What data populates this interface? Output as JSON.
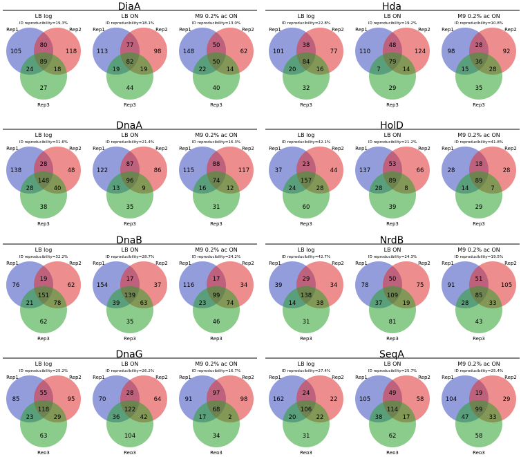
{
  "layout_labels": {
    "rep1": "Rep1",
    "rep2": "Rep2",
    "rep3": "Rep3"
  },
  "colors": {
    "rep1": "#3b4cc0",
    "rep2": "#e03030",
    "rep3": "#2ca02c"
  },
  "panels": [
    {
      "protein": "DiaA",
      "charts": [
        {
          "condition": "LB log",
          "reproducibility": "ID reproducibility=19.3%",
          "only1": 105,
          "only2": 118,
          "only3": 27,
          "r12": 80,
          "r13": 24,
          "r23": 18,
          "all": 89
        },
        {
          "condition": "LB ON",
          "reproducibility": "ID reproducibility=18.1%",
          "only1": 113,
          "only2": 98,
          "only3": 44,
          "r12": 77,
          "r13": 19,
          "r23": 19,
          "all": 82
        },
        {
          "condition": "M9 0.2% ac ON",
          "reproducibility": "ID reproducibility=13.0%",
          "only1": 148,
          "only2": 62,
          "only3": 40,
          "r12": 50,
          "r13": 22,
          "r23": 14,
          "all": 50
        }
      ]
    },
    {
      "protein": "Hda",
      "charts": [
        {
          "condition": "LB log",
          "reproducibility": "ID reproducibility=22.8%",
          "only1": 101,
          "only2": 77,
          "only3": 32,
          "r12": 38,
          "r13": 20,
          "r23": 16,
          "all": 84
        },
        {
          "condition": "LB ON",
          "reproducibility": "ID reproducibility=19.2%",
          "only1": 110,
          "only2": 124,
          "only3": 29,
          "r12": 48,
          "r13": 7,
          "r23": 14,
          "all": 79
        },
        {
          "condition": "M9 0.2% ac ON",
          "reproducibility": "ID reproducibility=10.8%",
          "only1": 98,
          "only2": 92,
          "only3": 35,
          "r12": 28,
          "r13": 15,
          "r23": 28,
          "all": 36
        }
      ]
    },
    {
      "protein": "DnaA",
      "charts": [
        {
          "condition": "LB log",
          "reproducibility": "ID reproducibility=31.6%",
          "only1": 138,
          "only2": 48,
          "only3": 38,
          "r12": 28,
          "r13": 28,
          "r23": 40,
          "all": 148
        },
        {
          "condition": "LB ON",
          "reproducibility": "ID reproducibility=21.4%",
          "only1": 122,
          "only2": 86,
          "only3": 35,
          "r12": 87,
          "r13": 13,
          "r23": 9,
          "all": 96
        },
        {
          "condition": "M9 0.2% ac ON",
          "reproducibility": "ID reproducibility=16.3%",
          "only1": 115,
          "only2": 117,
          "only3": 31,
          "r12": 88,
          "r13": 16,
          "r23": 12,
          "all": 74
        }
      ]
    },
    {
      "protein": "HolD",
      "charts": [
        {
          "condition": "LB log",
          "reproducibility": "ID reproducibility=42.1%",
          "only1": 37,
          "only2": 44,
          "only3": 60,
          "r12": 23,
          "r13": 24,
          "r23": 28,
          "all": 157
        },
        {
          "condition": "LB ON",
          "reproducibility": "ID reproducibility=21.2%",
          "only1": 137,
          "only2": 66,
          "only3": 39,
          "r12": 53,
          "r13": 28,
          "r23": 8,
          "all": 89
        },
        {
          "condition": "M9 0.2% ac ON",
          "reproducibility": "ID reproducibility=41.8%",
          "only1": 28,
          "only2": 28,
          "only3": 29,
          "r12": 18,
          "r13": 14,
          "r23": 7,
          "all": 89
        }
      ]
    },
    {
      "protein": "DnaB",
      "charts": [
        {
          "condition": "LB log",
          "reproducibility": "ID reproducibility=32.2%",
          "only1": 76,
          "only2": 62,
          "only3": 62,
          "r12": 19,
          "r13": 21,
          "r23": 78,
          "all": 151
        },
        {
          "condition": "LB ON",
          "reproducibility": "ID reproducibility=28.7%",
          "only1": 154,
          "only2": 37,
          "only3": 35,
          "r12": 17,
          "r13": 39,
          "r23": 63,
          "all": 139
        },
        {
          "condition": "M9 0.2% ac ON",
          "reproducibility": "ID reproducibility=24.2%",
          "only1": 116,
          "only2": 34,
          "only3": 46,
          "r12": 17,
          "r13": 23,
          "r23": 74,
          "all": 99
        }
      ]
    },
    {
      "protein": "NrdB",
      "charts": [
        {
          "condition": "LB log",
          "reproducibility": "ID reproducibility=42.7%",
          "only1": 39,
          "only2": 34,
          "only3": 31,
          "r12": 29,
          "r13": 14,
          "r23": 38,
          "all": 138
        },
        {
          "condition": "LB ON",
          "reproducibility": "ID reproducibility=24.3%",
          "only1": 78,
          "only2": 75,
          "only3": 81,
          "r12": 50,
          "r13": 37,
          "r23": 19,
          "all": 109
        },
        {
          "condition": "M9 0.2% ac ON",
          "reproducibility": "ID reproducibility=19.5%",
          "only1": 91,
          "only2": 105,
          "only3": 43,
          "r12": 51,
          "r13": 28,
          "r23": 33,
          "all": 85
        }
      ]
    },
    {
      "protein": "DnaG",
      "charts": [
        {
          "condition": "LB log",
          "reproducibility": "ID reproducibility=25.2%",
          "only1": 85,
          "only2": 95,
          "only3": 63,
          "r12": 55,
          "r13": 23,
          "r23": 29,
          "all": 118
        },
        {
          "condition": "LB ON",
          "reproducibility": "ID reproducibility=26.2%",
          "only1": 70,
          "only2": 64,
          "only3": 104,
          "r12": 28,
          "r13": 36,
          "r23": 42,
          "all": 122
        },
        {
          "condition": "M9 0.2% ac ON",
          "reproducibility": "ID reproducibility=16.7%",
          "only1": 91,
          "only2": 98,
          "only3": 34,
          "r12": 97,
          "r13": 17,
          "r23": 2,
          "all": 68
        }
      ]
    },
    {
      "protein": "SeqA",
      "charts": [
        {
          "condition": "LB log",
          "reproducibility": "ID reproducibility=27.4%",
          "only1": 162,
          "only2": 22,
          "only3": 31,
          "r12": 24,
          "r13": 20,
          "r23": 22,
          "all": 106
        },
        {
          "condition": "LB ON",
          "reproducibility": "ID reproducibility=25.7%",
          "only1": 105,
          "only2": 58,
          "only3": 62,
          "r12": 49,
          "r13": 38,
          "r23": 17,
          "all": 114
        },
        {
          "condition": "M9 0.2% ac ON",
          "reproducibility": "ID reproducibility=25.4%",
          "only1": 104,
          "only2": 29,
          "only3": 58,
          "r12": 19,
          "r13": 47,
          "r23": 33,
          "all": 99
        }
      ]
    }
  ],
  "chart_data": {
    "type": "venn3",
    "sets": [
      "Rep1",
      "Rep2",
      "Rep3"
    ],
    "note_regions": [
      "only1",
      "only2",
      "only3",
      "r12",
      "r13",
      "r23",
      "all"
    ]
  }
}
